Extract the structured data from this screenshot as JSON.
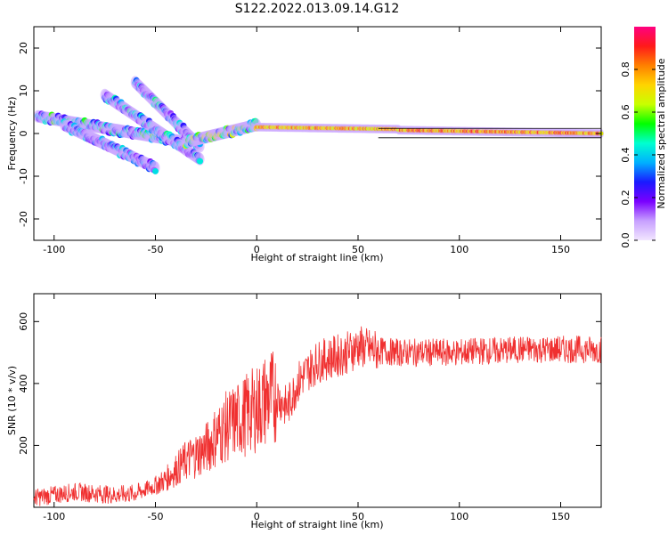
{
  "title": "S122.2022.013.09.14.G12",
  "chart_data": [
    {
      "type": "heatmap",
      "xlabel": "Height of straight line (km)",
      "ylabel": "Frequency (Hz)",
      "xlim": [
        -110,
        170
      ],
      "ylim": [
        -25,
        25
      ],
      "xticks": [
        -100,
        -50,
        0,
        50,
        100,
        150
      ],
      "yticks": [
        -20,
        -10,
        0,
        10,
        20
      ],
      "colorbar": {
        "label": "Normalized spectral amplitude",
        "range": [
          0.0,
          1.0
        ],
        "ticks": [
          0.0,
          0.2,
          0.4,
          0.6,
          0.8
        ],
        "colormap": [
          "#f2e6ff",
          "#c7a0ff",
          "#7a00ff",
          "#1a1aff",
          "#00b0ff",
          "#00ffd0",
          "#00ff00",
          "#c8ff00",
          "#ffd400",
          "#ff8000",
          "#ff1a1a",
          "#ff0080"
        ]
      },
      "bands": [
        {
          "x0": -108,
          "x1": -35,
          "freq_start": 4,
          "freq_end": -2,
          "amp": 0.35
        },
        {
          "x0": -75,
          "x1": -28,
          "freq_start": 9,
          "freq_end": -6,
          "amp": 0.3
        },
        {
          "x0": -60,
          "x1": -28,
          "freq_start": 12,
          "freq_end": -3,
          "amp": 0.3
        },
        {
          "x0": -95,
          "x1": -50,
          "freq_start": 2,
          "freq_end": -8,
          "amp": 0.25
        },
        {
          "x0": -35,
          "x1": 0,
          "freq_start": -2,
          "freq_end": 2,
          "amp": 0.45
        },
        {
          "x0": 0,
          "x1": 70,
          "freq_start": 1.5,
          "freq_end": 1,
          "amp": 0.85
        },
        {
          "x0": 70,
          "x1": 170,
          "freq_start": 0.8,
          "freq_end": 0,
          "amp": 0.9
        }
      ]
    },
    {
      "type": "line",
      "xlabel": "Height of straight line (km)",
      "ylabel": "SNR (10 * v/v)",
      "xlim": [
        -110,
        170
      ],
      "ylim": [
        0,
        690
      ],
      "xticks": [
        -100,
        -50,
        0,
        50,
        100,
        150
      ],
      "yticks": [
        200,
        400,
        600
      ],
      "color": "#f03030",
      "series": [
        {
          "x": [
            -110,
            -100,
            -90,
            -80,
            -70,
            -60,
            -50,
            -45,
            -40,
            -35,
            -30,
            -25,
            -20,
            -15,
            -10,
            -5,
            0,
            5,
            10,
            15,
            20,
            25,
            30,
            35,
            40,
            45,
            50,
            55,
            60,
            70,
            80,
            90,
            100,
            110,
            120,
            130,
            140,
            150,
            160,
            170
          ],
          "values": [
            30,
            40,
            50,
            45,
            40,
            45,
            70,
            90,
            120,
            150,
            170,
            190,
            230,
            260,
            280,
            300,
            320,
            350,
            360,
            320,
            400,
            440,
            470,
            480,
            490,
            500,
            520,
            510,
            505,
            500,
            500,
            500,
            500,
            505,
            505,
            510,
            510,
            510,
            510,
            510
          ]
        }
      ]
    }
  ]
}
